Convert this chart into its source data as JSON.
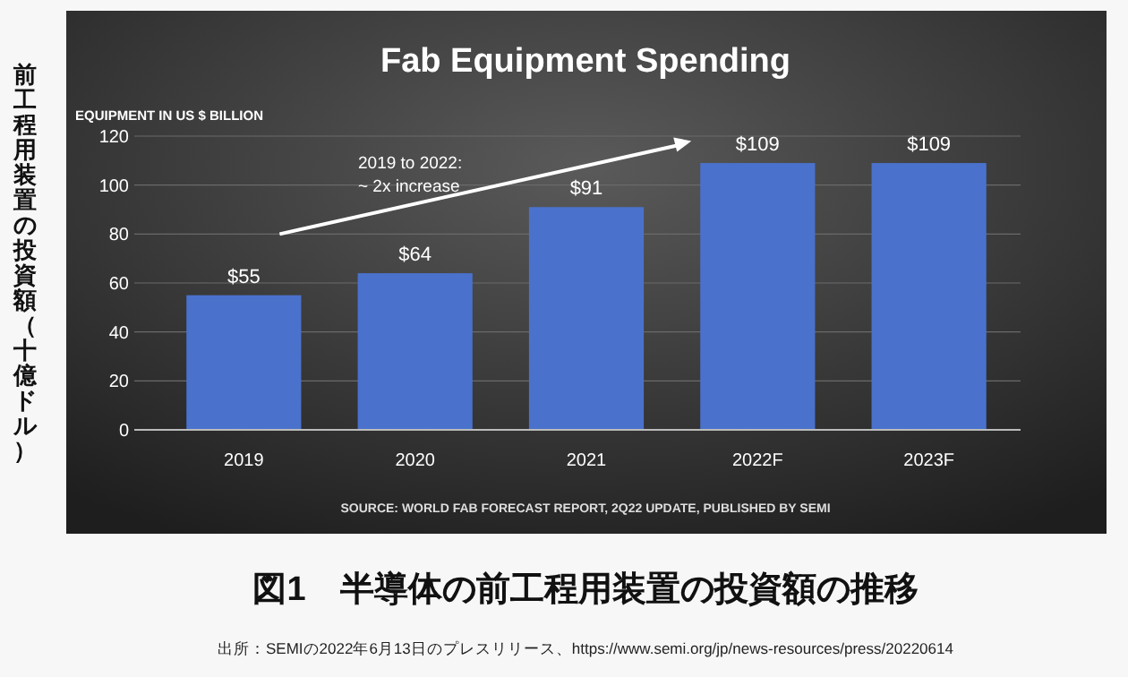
{
  "chart_data": {
    "type": "bar",
    "title": "Fab Equipment Spending",
    "ylabel": "前工程用装置の投資額（十億ドル）",
    "categories": [
      "2019",
      "2020",
      "2021",
      "2022F",
      "2023F"
    ],
    "values": [
      55,
      64,
      91,
      109,
      109
    ],
    "value_labels": [
      "$55",
      "$64",
      "$91",
      "$109",
      "$109"
    ],
    "color": "#4a72cc",
    "ylim": [
      0,
      120
    ],
    "yticks": [
      0,
      20,
      40,
      60,
      80,
      100,
      120
    ],
    "grid": "y",
    "annotations": [
      "EQUIPMENT IN US $ BILLION",
      "2019 to 2022:\n~ 2x increase",
      "SOURCE: WORLD FAB FORECAST REPORT, 2Q22 UPDATE, PUBLISHED BY SEMI",
      "図1　半導体の前工程用装置の投資額の推移",
      "出所：SEMIの2022年6月13日のプレスリリース、https://www.semi.org/jp/news-resources/press/20220614"
    ]
  }
}
